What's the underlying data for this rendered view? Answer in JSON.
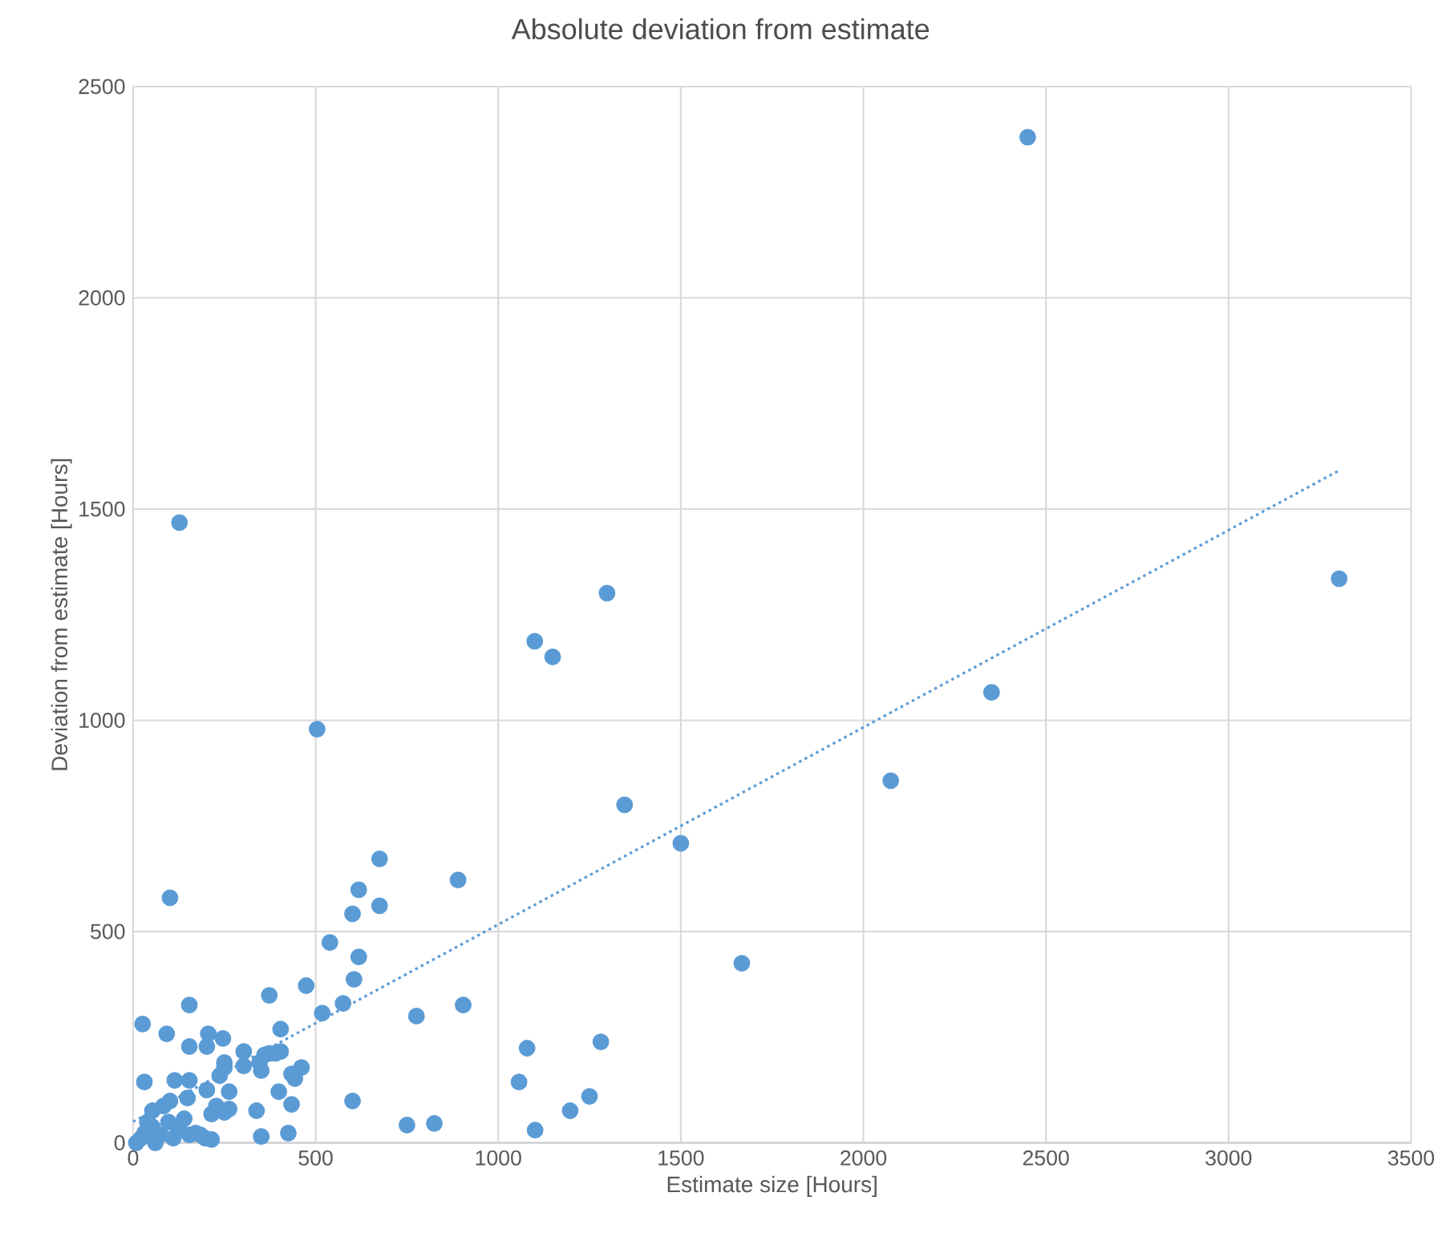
{
  "chart_data": {
    "type": "scatter",
    "title": "Absolute deviation from estimate",
    "xlabel": "Estimate size [Hours]",
    "ylabel": "Deviation from estimate [Hours]",
    "xlim": [
      0,
      3500
    ],
    "xticks": [
      0,
      500,
      1000,
      1500,
      2000,
      2500,
      3000,
      3500
    ],
    "ylim": [
      0,
      2500
    ],
    "yticks": [
      0,
      500,
      1000,
      1500,
      2000,
      2500
    ],
    "grid": true,
    "series": [
      {
        "type": "scatter",
        "marker": "circle",
        "color": "#5b9bd5",
        "x": [
          2450,
          127,
          1100,
          1298,
          1149,
          3303,
          2351,
          504,
          2075,
          1346,
          1500,
          1667,
          675,
          890,
          618,
          101,
          675,
          601,
          539,
          618,
          474,
          605,
          904,
          1079,
          1057,
          1101,
          1197,
          1250,
          1281,
          776,
          825,
          373,
          154,
          575,
          518,
          26,
          92,
          206,
          246,
          154,
          202,
          404,
          303,
          404,
          360,
          373,
          390,
          346,
          250,
          250,
          303,
          351,
          461,
          237,
          434,
          443,
          31,
          114,
          154,
          202,
          263,
          399,
          601,
          434,
          338,
          263,
          250,
          228,
          215,
          101,
          149,
          351,
          425,
          750,
          215,
          184,
          9,
          31,
          53,
          53,
          75,
          97,
          127,
          110,
          140,
          171,
          61,
          39,
          83,
          154,
          197,
          22
        ],
        "values": [
          2380,
          1468,
          1187,
          1301,
          1150,
          1335,
          1066,
          979,
          857,
          800,
          709,
          425,
          672,
          622,
          599,
          580,
          561,
          542,
          474,
          440,
          372,
          387,
          326,
          224,
          144,
          30,
          76,
          110,
          239,
          300,
          46,
          349,
          326,
          330,
          307,
          281,
          258,
          258,
          247,
          228,
          228,
          269,
          216,
          216,
          208,
          212,
          212,
          190,
          190,
          178,
          182,
          171,
          178,
          159,
          163,
          152,
          144,
          148,
          148,
          125,
          121,
          121,
          99,
          91,
          76,
          80,
          72,
          87,
          68,
          99,
          106,
          15,
          23,
          42,
          8,
          19,
          0,
          23,
          76,
          38,
          19,
          49,
          30,
          11,
          57,
          23,
          0,
          49,
          87,
          19,
          11,
          11
        ]
      },
      {
        "type": "line",
        "marker": "none",
        "line_style": "dotted",
        "color": "#5b9bd5",
        "x": [
          0,
          3300
        ],
        "values": [
          50,
          1590
        ]
      }
    ]
  }
}
